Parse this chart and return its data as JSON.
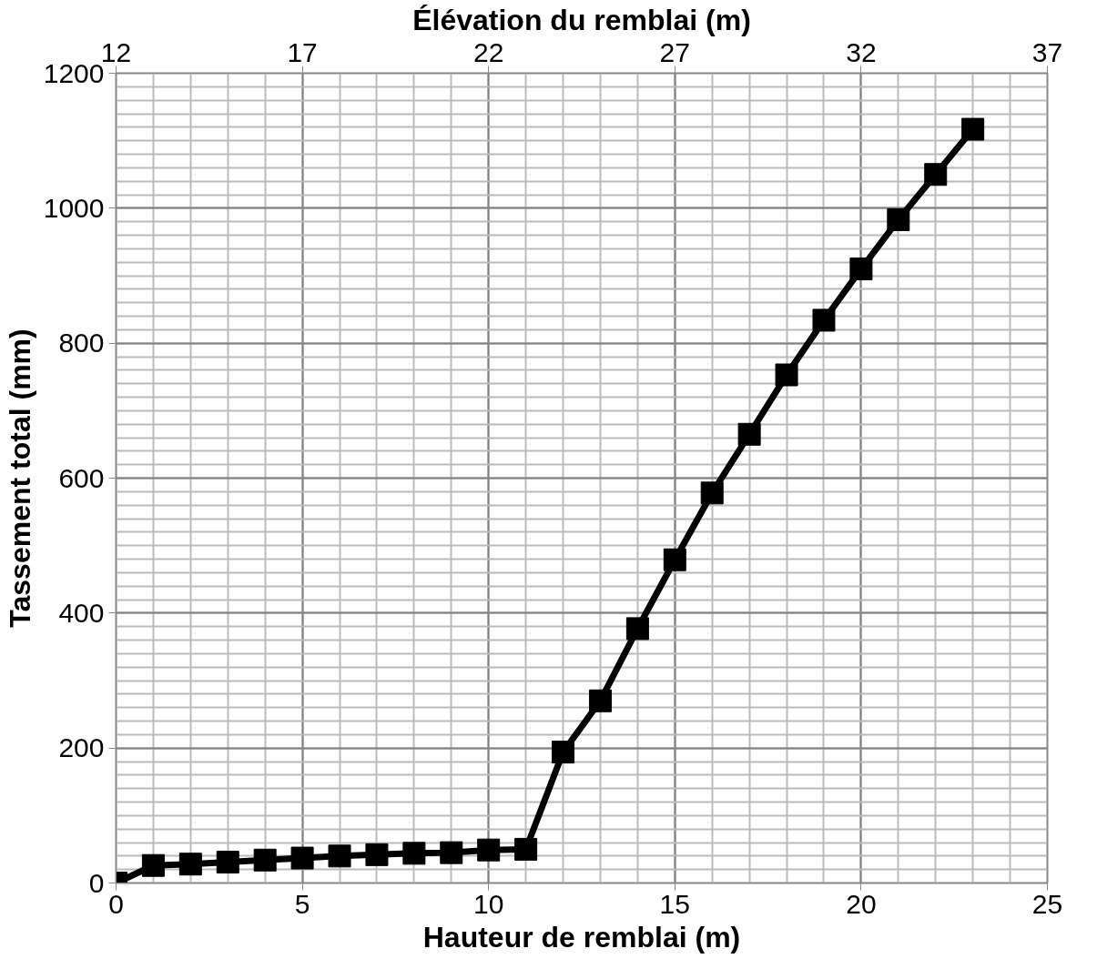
{
  "chart_data": {
    "type": "line",
    "xlabel": "Hauteur de remblai (m)",
    "ylabel": "Tassement total (mm)",
    "x2label": "Élévation du remblai (m)",
    "x": [
      0,
      1,
      2,
      3,
      4,
      5,
      6,
      7,
      8,
      9,
      10,
      11,
      12,
      13,
      14,
      15,
      16,
      17,
      18,
      19,
      20,
      21,
      22,
      23
    ],
    "series": [
      {
        "color": "#000000",
        "values": [
          0,
          26,
          28,
          31,
          34,
          37,
          40,
          42,
          44,
          45,
          49,
          50,
          194,
          270,
          377,
          479,
          578,
          665,
          753,
          834,
          910,
          983,
          1050,
          1117
        ]
      }
    ],
    "xlim": [
      0,
      25
    ],
    "xticks": [
      0,
      5,
      10,
      15,
      20,
      25
    ],
    "x2lim": [
      12,
      37
    ],
    "x2ticks": [
      12,
      17,
      22,
      27,
      32,
      37
    ],
    "ylim": [
      0,
      1200
    ],
    "yticks": [
      0,
      200,
      400,
      600,
      800,
      1000,
      1200
    ],
    "grid": true,
    "marker": "square",
    "line_style": "solid"
  }
}
